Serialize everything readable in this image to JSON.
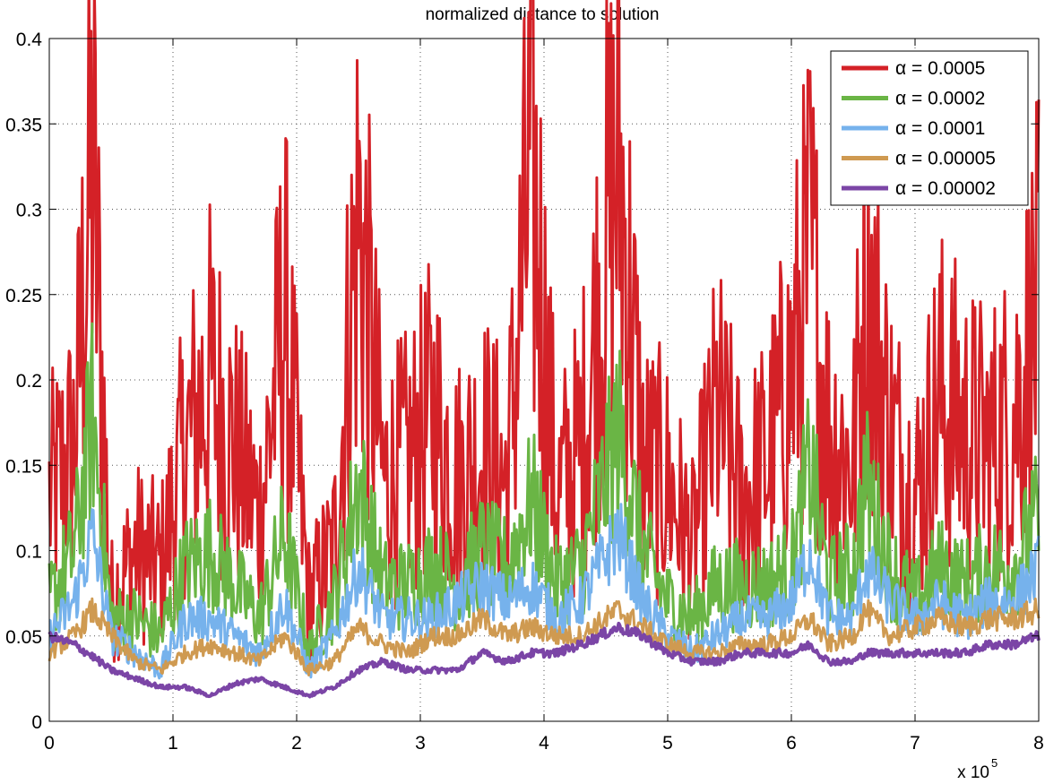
{
  "chart_data": {
    "type": "line",
    "title": "normalized distance to solution",
    "xlabel": "",
    "ylabel": "",
    "x_multiplier": {
      "base": "x 10",
      "exponent": "5"
    },
    "xlim": [
      0,
      8
    ],
    "ylim": [
      0,
      0.4
    ],
    "grid": true,
    "legend_position": "top-right",
    "x_ticks": [
      0,
      1,
      2,
      3,
      4,
      5,
      6,
      7,
      8
    ],
    "x_tick_labels": [
      "0",
      "1",
      "2",
      "3",
      "4",
      "5",
      "6",
      "7",
      "8"
    ],
    "y_ticks": [
      0,
      0.05,
      0.1,
      0.15,
      0.2,
      0.25,
      0.3,
      0.35,
      0.4
    ],
    "y_tick_labels": [
      "0",
      "0.05",
      "0.1",
      "0.15",
      "0.2",
      "0.25",
      "0.3",
      "0.35",
      "0.4"
    ],
    "x": [
      0,
      0.2,
      0.35,
      0.5,
      0.7,
      0.9,
      1.1,
      1.3,
      1.5,
      1.7,
      1.9,
      2.1,
      2.3,
      2.5,
      2.7,
      2.9,
      3.1,
      3.3,
      3.5,
      3.7,
      3.9,
      4.1,
      4.3,
      4.6,
      4.8,
      5.0,
      5.2,
      5.4,
      5.6,
      5.8,
      6.0,
      6.15,
      6.3,
      6.5,
      6.6,
      6.8,
      7.0,
      7.2,
      7.4,
      7.6,
      7.8,
      8.0
    ],
    "series": [
      {
        "name": "α = 0.0005",
        "color": "#d42127",
        "values": [
          0.13,
          0.16,
          0.33,
          0.07,
          0.1,
          0.09,
          0.16,
          0.2,
          0.16,
          0.12,
          0.24,
          0.07,
          0.1,
          0.3,
          0.14,
          0.15,
          0.18,
          0.14,
          0.16,
          0.14,
          0.33,
          0.13,
          0.16,
          0.33,
          0.15,
          0.14,
          0.1,
          0.18,
          0.13,
          0.15,
          0.2,
          0.27,
          0.17,
          0.15,
          0.26,
          0.17,
          0.13,
          0.19,
          0.17,
          0.16,
          0.18,
          0.24
        ]
      },
      {
        "name": "α = 0.0002",
        "color": "#6ab545",
        "values": [
          0.07,
          0.1,
          0.18,
          0.06,
          0.06,
          0.05,
          0.09,
          0.1,
          0.08,
          0.06,
          0.11,
          0.04,
          0.07,
          0.14,
          0.08,
          0.08,
          0.09,
          0.08,
          0.1,
          0.09,
          0.13,
          0.08,
          0.09,
          0.17,
          0.1,
          0.07,
          0.06,
          0.08,
          0.08,
          0.08,
          0.09,
          0.15,
          0.08,
          0.09,
          0.14,
          0.09,
          0.07,
          0.09,
          0.08,
          0.09,
          0.09,
          0.12
        ]
      },
      {
        "name": "α = 0.0001",
        "color": "#76b2ec",
        "values": [
          0.05,
          0.07,
          0.11,
          0.05,
          0.04,
          0.03,
          0.06,
          0.06,
          0.05,
          0.04,
          0.07,
          0.03,
          0.05,
          0.09,
          0.06,
          0.06,
          0.06,
          0.07,
          0.08,
          0.07,
          0.08,
          0.06,
          0.07,
          0.11,
          0.07,
          0.05,
          0.04,
          0.05,
          0.06,
          0.06,
          0.07,
          0.1,
          0.06,
          0.06,
          0.09,
          0.07,
          0.06,
          0.07,
          0.06,
          0.07,
          0.07,
          0.09
        ]
      },
      {
        "name": "α = 0.00005",
        "color": "#cf9a51",
        "values": [
          0.04,
          0.05,
          0.065,
          0.05,
          0.035,
          0.03,
          0.04,
          0.045,
          0.04,
          0.035,
          0.05,
          0.03,
          0.035,
          0.055,
          0.045,
          0.04,
          0.05,
          0.05,
          0.06,
          0.05,
          0.055,
          0.05,
          0.05,
          0.065,
          0.055,
          0.045,
          0.04,
          0.04,
          0.045,
          0.045,
          0.05,
          0.06,
          0.045,
          0.05,
          0.065,
          0.05,
          0.055,
          0.06,
          0.055,
          0.06,
          0.06,
          0.065
        ]
      },
      {
        "name": "α = 0.00002",
        "color": "#7b45a6",
        "values": [
          0.05,
          0.045,
          0.038,
          0.03,
          0.025,
          0.02,
          0.02,
          0.015,
          0.022,
          0.025,
          0.02,
          0.015,
          0.02,
          0.03,
          0.035,
          0.03,
          0.03,
          0.03,
          0.04,
          0.035,
          0.04,
          0.04,
          0.045,
          0.055,
          0.05,
          0.04,
          0.035,
          0.035,
          0.04,
          0.04,
          0.04,
          0.045,
          0.035,
          0.035,
          0.04,
          0.04,
          0.04,
          0.04,
          0.04,
          0.045,
          0.045,
          0.05
        ]
      }
    ]
  }
}
